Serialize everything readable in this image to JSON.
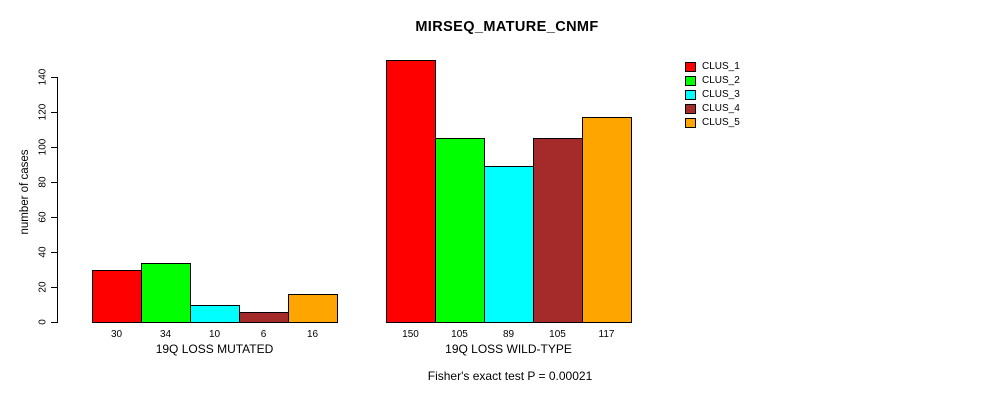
{
  "chart_data": {
    "type": "bar",
    "title": "MIRSEQ_MATURE_CNMF",
    "ylabel": "number of cases",
    "annotation": "Fisher's exact test P = 0.00021",
    "series": [
      {
        "name": "CLUS_1",
        "color": "#FF0000"
      },
      {
        "name": "CLUS_2",
        "color": "#00FF00"
      },
      {
        "name": "CLUS_3",
        "color": "#00FFFF"
      },
      {
        "name": "CLUS_4",
        "color": "#A52A2A"
      },
      {
        "name": "CLUS_5",
        "color": "#FFA500"
      }
    ],
    "groups": [
      {
        "label": "19Q LOSS MUTATED",
        "values": [
          30,
          34,
          10,
          6,
          16
        ]
      },
      {
        "label": "19Q LOSS WILD-TYPE",
        "values": [
          150,
          105,
          89,
          105,
          117
        ]
      }
    ],
    "yticks": [
      0,
      20,
      40,
      60,
      80,
      100,
      120,
      140
    ],
    "ylim": [
      0,
      150
    ],
    "bar_value_labels": true,
    "grid": false,
    "legend_position": "top-right"
  }
}
